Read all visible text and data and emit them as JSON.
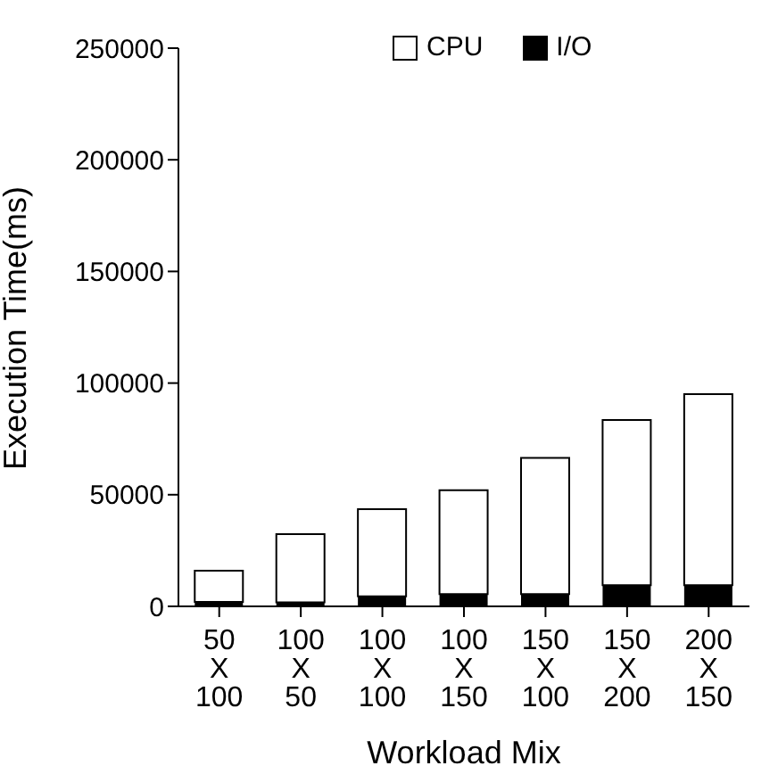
{
  "chart_data": {
    "type": "bar",
    "stacked": true,
    "xlabel": "Workload Mix",
    "ylabel": "Execution Time(ms)",
    "categories": [
      "50\nX\n100",
      "100\nX\n50",
      "100\nX\n100",
      "100\nX\n150",
      "150\nX\n100",
      "150\nX\n200",
      "200\nX\n150"
    ],
    "series": [
      {
        "name": "I/O",
        "color": "#000000",
        "values": [
          2000,
          1800,
          4500,
          5500,
          5500,
          9500,
          9500
        ]
      },
      {
        "name": "CPU",
        "color": "#ffffff",
        "values": [
          14000,
          30500,
          39000,
          46500,
          61000,
          74000,
          85500
        ]
      }
    ],
    "ylim": [
      0,
      250000
    ],
    "yticks": [
      0,
      50000,
      100000,
      150000,
      200000,
      250000
    ],
    "grid": false,
    "legend": "top right"
  }
}
